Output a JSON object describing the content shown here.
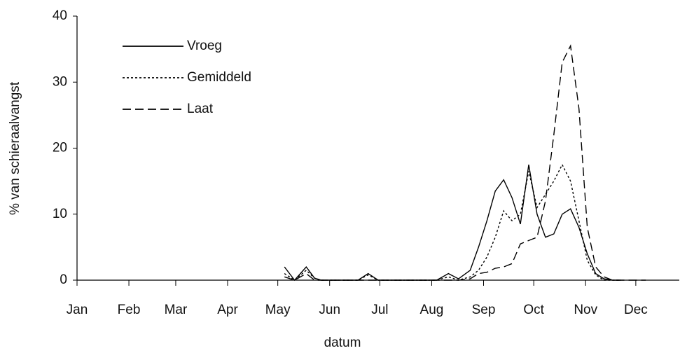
{
  "chart_data": {
    "type": "line",
    "x_label": "datum",
    "y_label": "% van schieraalvangst",
    "x": [
      124,
      130,
      137,
      142,
      146,
      160,
      168,
      174,
      180,
      200,
      215,
      222,
      228,
      235,
      240,
      245,
      250,
      255,
      260,
      265,
      270,
      275,
      280,
      285,
      290,
      295,
      300,
      305,
      310,
      315,
      320,
      325,
      330,
      340,
      350
    ],
    "series": [
      {
        "name": "Vroeg",
        "color": "#000000",
        "dash": "solid",
        "values": [
          2,
          0,
          2,
          0.3,
          0,
          0,
          0,
          1,
          0,
          0,
          0,
          1,
          0.2,
          1.5,
          5,
          9,
          13.5,
          15.2,
          12.5,
          8.5,
          17.5,
          10,
          6.5,
          7,
          10,
          10.8,
          8,
          4,
          1,
          0.2,
          0,
          0,
          null,
          null,
          null
        ]
      },
      {
        "name": "Gemiddeld",
        "color": "#000000",
        "dash": "dotted",
        "values": [
          1,
          0,
          1.5,
          0.3,
          0,
          0,
          0,
          0.8,
          0,
          0,
          0,
          0.5,
          0,
          0.5,
          1.5,
          3.5,
          6.5,
          10.5,
          9,
          10,
          16.5,
          11,
          13,
          15,
          17.5,
          15,
          9,
          3,
          0.8,
          0,
          0,
          0,
          null,
          null,
          null
        ]
      },
      {
        "name": "Laat",
        "color": "#000000",
        "dash": "dashed",
        "values": [
          0.5,
          0,
          1,
          0,
          0,
          0,
          0,
          0,
          0,
          0,
          0,
          0,
          0,
          0.2,
          1,
          1.2,
          1.8,
          2,
          2.5,
          5.5,
          6,
          6.5,
          12,
          22,
          33,
          35.5,
          26,
          8,
          2,
          0.5,
          0,
          0,
          0,
          0,
          null
        ]
      }
    ],
    "xlim": [
      0,
      360
    ],
    "xticks": [
      {
        "value": 0,
        "label": "Jan"
      },
      {
        "value": 31,
        "label": "Feb"
      },
      {
        "value": 59,
        "label": "Mar"
      },
      {
        "value": 90,
        "label": "Apr"
      },
      {
        "value": 120,
        "label": "May"
      },
      {
        "value": 151,
        "label": "Jun"
      },
      {
        "value": 181,
        "label": "Jul"
      },
      {
        "value": 212,
        "label": "Aug"
      },
      {
        "value": 243,
        "label": "Sep"
      },
      {
        "value": 273,
        "label": "Oct"
      },
      {
        "value": 304,
        "label": "Nov"
      },
      {
        "value": 334,
        "label": "Dec"
      }
    ],
    "ylim": [
      0,
      40
    ],
    "yticks": [
      0,
      10,
      20,
      30,
      40
    ],
    "grid": false,
    "legend": "upper-left"
  }
}
